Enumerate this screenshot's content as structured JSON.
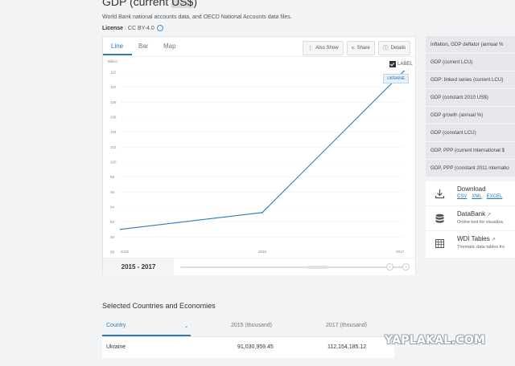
{
  "header": {
    "title_prefix": "GDP (current ",
    "title_highlight": "US$",
    "title_suffix": ")",
    "source": "World Bank national accounts data, and OECD National Accounts data files.",
    "license_label": "License",
    "license_value": ": CC BY-4.0"
  },
  "tabs": [
    {
      "label": "Line",
      "active": true
    },
    {
      "label": "Bar",
      "active": false
    },
    {
      "label": "Map",
      "active": false
    }
  ],
  "toolbar": {
    "also_show": "Also Show",
    "share": "Share",
    "details": "Details"
  },
  "chart_controls": {
    "label_checkbox": "LABEL",
    "label_checked": true,
    "series_tag": "UKRAINE"
  },
  "chart_data": {
    "type": "line",
    "unit_label": "Billion",
    "x": [
      2015,
      2016,
      2017
    ],
    "x_ticks": [
      "2015",
      "2016",
      "2017"
    ],
    "y_ticks": [
      "88",
      "90",
      "92",
      "94",
      "96",
      "98",
      "100",
      "102",
      "104",
      "106",
      "108",
      "110",
      "112"
    ],
    "ylim": [
      88,
      112
    ],
    "series": [
      {
        "name": "UKRAINE",
        "points": [
          [
            2015,
            91.03
          ],
          [
            2016,
            93.27
          ],
          [
            2017,
            112.15
          ]
        ],
        "color": "#2f7ab7"
      }
    ]
  },
  "range": {
    "start": "2015",
    "separator": "-",
    "end": "2017"
  },
  "indicators": [
    "Inflation, GDP deflator (annual %",
    "GDP (current LCU)",
    "GDP: linked series (current LCU)",
    "GDP (constant 2010 US$)",
    "GDP growth (annual %)",
    "GDP (constant LCU)",
    "GDP, PPP (current international $",
    "GDP, PPP (constant 2011 internatio"
  ],
  "download": {
    "title": "Download",
    "links": [
      "CSV",
      "XML",
      "EXCEL"
    ],
    "databank_title": "DataBank",
    "databank_desc": "Online tool for visualiza",
    "wdi_title": "WDI Tables",
    "wdi_desc": "Thematic data tables fro"
  },
  "table": {
    "section_title": "Selected Countries and Economies",
    "columns": [
      "Country",
      "2015 (thousand)",
      "2017 (thousand)"
    ],
    "rows": [
      {
        "country": "Ukraine",
        "v2015": "91,030,959.45",
        "v2017": "112,154,185.12"
      }
    ]
  },
  "watermark": "YAPLAKAL.COM",
  "colors": {
    "accent": "#2a7ab8",
    "line": "#2f7ab7"
  }
}
